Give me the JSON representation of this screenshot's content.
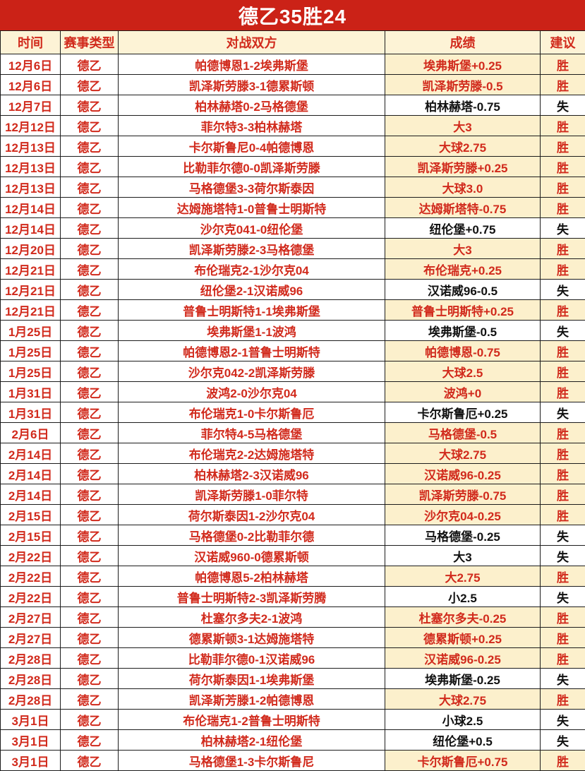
{
  "title": "德乙35胜24",
  "columns": {
    "date": "时间",
    "league": "赛事类型",
    "match": "对战双方",
    "result": "成绩",
    "verdict": "建议"
  },
  "colors": {
    "title_bg": "#cb2217",
    "header_bg": "#fdf3d6",
    "cell_text_red": "#d12a1c",
    "win_highlight_bg": "#fcf0cc",
    "loss_text": "#111111",
    "border": "#1c1c1c"
  },
  "rows": [
    {
      "date": "12月6日",
      "league": "德乙",
      "match": "帕德博恩1-2埃弗斯堡",
      "result": "埃弗斯堡+0.25",
      "verdict": "胜"
    },
    {
      "date": "12月6日",
      "league": "德乙",
      "match": "凯泽斯劳滕3-1德累斯顿",
      "result": "凯泽斯劳滕-0.5",
      "verdict": "胜"
    },
    {
      "date": "12月7日",
      "league": "德乙",
      "match": "柏林赫塔0-2马格德堡",
      "result": "柏林赫塔-0.75",
      "verdict": "失"
    },
    {
      "date": "12月12日",
      "league": "德乙",
      "match": "菲尔特3-3柏林赫塔",
      "result": "大3",
      "verdict": "胜"
    },
    {
      "date": "12月13日",
      "league": "德乙",
      "match": "卡尔斯鲁尼0-4帕德博恩",
      "result": "大球2.75",
      "verdict": "胜"
    },
    {
      "date": "12月13日",
      "league": "德乙",
      "match": "比勒菲尔德0-0凯泽斯劳滕",
      "result": "凯泽斯劳滕+0.25",
      "verdict": "胜"
    },
    {
      "date": "12月13日",
      "league": "德乙",
      "match": "马格德堡3-3荷尔斯泰因",
      "result": "大球3.0",
      "verdict": "胜"
    },
    {
      "date": "12月14日",
      "league": "德乙",
      "match": "达姆施塔特1-0普鲁士明斯特",
      "result": "达姆斯塔特-0.75",
      "verdict": "胜"
    },
    {
      "date": "12月14日",
      "league": "德乙",
      "match": "沙尔克041-0纽伦堡",
      "result": "纽伦堡+0.75",
      "verdict": "失"
    },
    {
      "date": "12月20日",
      "league": "德乙",
      "match": "凯泽斯劳滕2-3马格德堡",
      "result": "大3",
      "verdict": "胜"
    },
    {
      "date": "12月21日",
      "league": "德乙",
      "match": "布伦瑞克2-1沙尔克04",
      "result": "布伦瑞克+0.25",
      "verdict": "胜"
    },
    {
      "date": "12月21日",
      "league": "德乙",
      "match": "纽伦堡2-1汉诺威96",
      "result": "汉诺威96-0.5",
      "verdict": "失"
    },
    {
      "date": "12月21日",
      "league": "德乙",
      "match": "普鲁士明斯特1-1埃弗斯堡",
      "result": "普鲁士明斯特+0.25",
      "verdict": "胜"
    },
    {
      "date": "1月25日",
      "league": "德乙",
      "match": "埃弗斯堡1-1波鸿",
      "result": "埃弗斯堡-0.5",
      "verdict": "失"
    },
    {
      "date": "1月25日",
      "league": "德乙",
      "match": "帕德博恩2-1普鲁士明斯特",
      "result": "帕德博恩-0.75",
      "verdict": "胜"
    },
    {
      "date": "1月25日",
      "league": "德乙",
      "match": "沙尔克042-2凯泽斯劳滕",
      "result": "大球2.5",
      "verdict": "胜"
    },
    {
      "date": "1月31日",
      "league": "德乙",
      "match": "波鸿2-0沙尔克04",
      "result": "波鸿+0",
      "verdict": "胜"
    },
    {
      "date": "1月31日",
      "league": "德乙",
      "match": "布伦瑞克1-0卡尔斯鲁厄",
      "result": "卡尔斯鲁厄+0.25",
      "verdict": "失"
    },
    {
      "date": "2月6日",
      "league": "德乙",
      "match": "菲尔特4-5马格德堡",
      "result": "马格德堡-0.5",
      "verdict": "胜"
    },
    {
      "date": "2月14日",
      "league": "德乙",
      "match": "布伦瑞克2-2达姆施塔特",
      "result": "大球2.75",
      "verdict": "胜"
    },
    {
      "date": "2月14日",
      "league": "德乙",
      "match": "柏林赫塔2-3汉诺威96",
      "result": "汉诺威96-0.25",
      "verdict": "胜"
    },
    {
      "date": "2月14日",
      "league": "德乙",
      "match": "凯泽斯劳滕1-0菲尔特",
      "result": "凯泽斯劳滕-0.75",
      "verdict": "胜"
    },
    {
      "date": "2月15日",
      "league": "德乙",
      "match": "荷尔斯泰因1-2沙尔克04",
      "result": "沙尔克04-0.25",
      "verdict": "胜"
    },
    {
      "date": "2月15日",
      "league": "德乙",
      "match": "马格德堡0-2比勒菲尔德",
      "result": "马格德堡-0.25",
      "verdict": "失"
    },
    {
      "date": "2月22日",
      "league": "德乙",
      "match": "汉诺威960-0德累斯顿",
      "result": "大3",
      "verdict": "失"
    },
    {
      "date": "2月22日",
      "league": "德乙",
      "match": "帕德博恩5-2柏林赫塔",
      "result": "大2.75",
      "verdict": "胜"
    },
    {
      "date": "2月22日",
      "league": "德乙",
      "match": "普鲁士明斯特2-3凯泽斯劳腾",
      "result": "小2.5",
      "verdict": "失"
    },
    {
      "date": "2月27日",
      "league": "德乙",
      "match": "杜塞尔多夫2-1波鸿",
      "result": "杜塞尔多夫-0.25",
      "verdict": "胜"
    },
    {
      "date": "2月27日",
      "league": "德乙",
      "match": "德累斯顿3-1达姆施塔特",
      "result": "德累斯顿+0.25",
      "verdict": "胜"
    },
    {
      "date": "2月28日",
      "league": "德乙",
      "match": "比勒菲尔德0-1汉诺威96",
      "result": "汉诺威96-0.25",
      "verdict": "胜"
    },
    {
      "date": "2月28日",
      "league": "德乙",
      "match": "荷尔斯泰因1-1埃弗斯堡",
      "result": "埃弗斯堡-0.25",
      "verdict": "失"
    },
    {
      "date": "2月28日",
      "league": "德乙",
      "match": "凯泽斯芳滕1-2帕德博恩",
      "result": "大球2.75",
      "verdict": "胜"
    },
    {
      "date": "3月1日",
      "league": "德乙",
      "match": "布伦瑞克1-2普鲁士明斯特",
      "result": "小球2.5",
      "verdict": "失"
    },
    {
      "date": "3月1日",
      "league": "德乙",
      "match": "柏林赫塔2-1纽伦堡",
      "result": "纽伦堡+0.5",
      "verdict": "失"
    },
    {
      "date": "3月1日",
      "league": "德乙",
      "match": "马格德堡1-3卡尔斯鲁尼",
      "result": "卡尔斯鲁厄+0.75",
      "verdict": "胜"
    }
  ]
}
